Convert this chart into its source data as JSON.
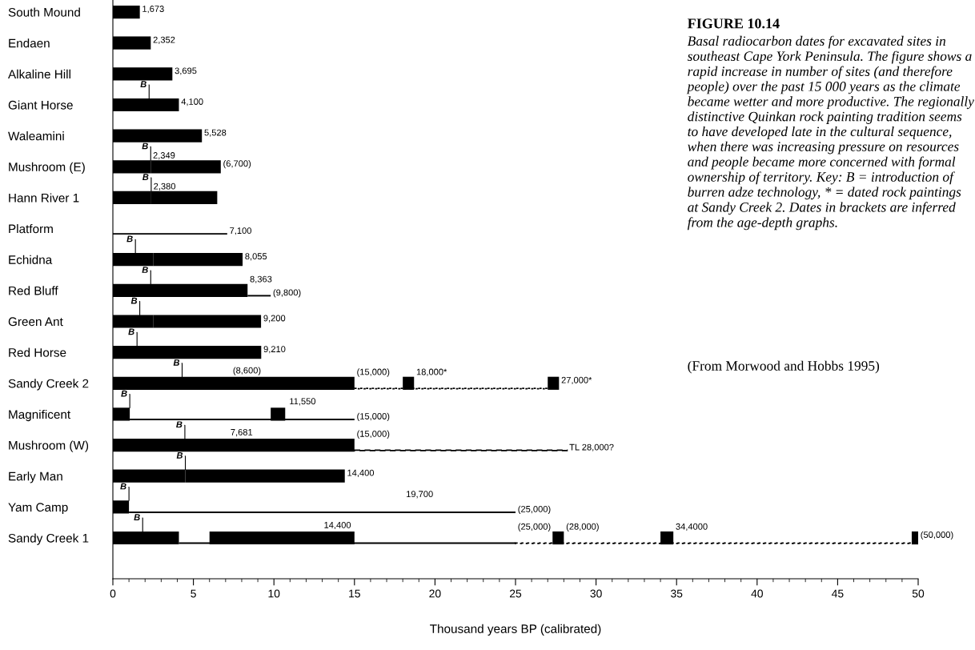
{
  "chart_data": {
    "type": "bar",
    "orientation": "horizontal",
    "title": "FIGURE 10.14",
    "xlabel": "Thousand years BP (calibrated)",
    "categories": [
      "South Mound",
      "Endaen",
      "Alkaline Hill",
      "Giant Horse",
      "Waleamini",
      "Mushroom (E)",
      "Hann River 1",
      "Platform",
      "Echidna",
      "Red Bluff",
      "Green Ant",
      "Red Horse",
      "Sandy Creek 2",
      "Magnificent",
      "Mushroom (W)",
      "Early Man",
      "Yam Camp",
      "Sandy Creek 1"
    ],
    "xlim": [
      0,
      50
    ],
    "xticks": [
      0,
      5,
      10,
      15,
      20,
      25,
      30,
      35,
      40,
      45,
      50
    ],
    "series": [
      {
        "color": "#000000",
        "base": [
          0,
          0,
          0,
          0,
          0,
          0,
          0,
          null,
          0,
          0,
          0,
          0,
          0,
          0,
          0,
          0,
          0,
          0
        ],
        "values": [
          1.673,
          2.352,
          3.695,
          4.1,
          5.528,
          2.349,
          2.38,
          null,
          2.5,
          8.363,
          2.5,
          9.21,
          15,
          1.05,
          15,
          4.5,
          1.0,
          4.1
        ]
      },
      {
        "color": "#000000",
        "base": [
          null,
          null,
          null,
          null,
          null,
          2.349,
          2.38,
          null,
          2.5,
          null,
          2.5,
          null,
          18.0,
          9.8,
          null,
          4.5,
          null,
          6.0
        ],
        "values": [
          null,
          null,
          null,
          null,
          null,
          4.351,
          4.1,
          null,
          5.555,
          null,
          6.7,
          null,
          0.7,
          0.9,
          null,
          9.9,
          null,
          9.0
        ]
      },
      {
        "color": "#000000",
        "base": [
          null,
          null,
          null,
          null,
          null,
          null,
          null,
          null,
          null,
          null,
          null,
          null,
          27.0,
          null,
          null,
          null,
          null,
          27.3
        ],
        "values": [
          null,
          null,
          null,
          null,
          null,
          null,
          null,
          null,
          null,
          null,
          null,
          null,
          0.7,
          null,
          null,
          null,
          null,
          0.7
        ]
      },
      {
        "color": "#000000",
        "base": [
          null,
          null,
          null,
          null,
          null,
          null,
          null,
          null,
          null,
          null,
          null,
          null,
          null,
          null,
          null,
          null,
          null,
          34.0
        ],
        "values": [
          null,
          null,
          null,
          null,
          null,
          null,
          null,
          null,
          null,
          null,
          null,
          null,
          null,
          null,
          null,
          null,
          null,
          0.8
        ]
      },
      {
        "color": "#000000",
        "base": [
          null,
          null,
          null,
          null,
          null,
          null,
          null,
          null,
          null,
          null,
          null,
          null,
          null,
          null,
          null,
          null,
          null,
          49.6
        ],
        "values": [
          null,
          null,
          null,
          null,
          null,
          null,
          null,
          null,
          null,
          null,
          null,
          null,
          null,
          null,
          null,
          null,
          null,
          0.4
        ]
      },
      {
        "line_style": "solid",
        "color": "#000000",
        "base": [
          null,
          null,
          null,
          null,
          null,
          null,
          null,
          0,
          null,
          8.363,
          null,
          null,
          null,
          1.05,
          null,
          null,
          1.0,
          4.1
        ],
        "values": [
          null,
          null,
          null,
          null,
          null,
          null,
          null,
          7.1,
          null,
          1.437,
          null,
          null,
          null,
          13.95,
          null,
          null,
          24,
          20.9
        ]
      },
      {
        "line_style": "dotted",
        "color": "#000000",
        "base": [
          null,
          null,
          null,
          null,
          null,
          null,
          null,
          null,
          null,
          null,
          null,
          null,
          15,
          null,
          null,
          null,
          null,
          25
        ],
        "values": [
          null,
          null,
          null,
          null,
          null,
          null,
          null,
          null,
          null,
          null,
          null,
          null,
          12.0,
          null,
          null,
          null,
          null,
          24.6
        ]
      },
      {
        "line_style": "dashed",
        "color": "#000000",
        "base": [
          null,
          null,
          null,
          null,
          null,
          null,
          null,
          null,
          null,
          null,
          null,
          null,
          null,
          null,
          15,
          null,
          null,
          null
        ],
        "values": [
          null,
          null,
          null,
          null,
          null,
          null,
          null,
          null,
          null,
          null,
          null,
          null,
          null,
          null,
          13.2,
          null,
          null,
          null
        ]
      }
    ],
    "annotations": [
      "Basal radiocarbon dates for excavated sites in southeast Cape York Peninsula. The figure shows a rapid increase in number of sites (and therefore people) over the past 15 000 years as the climate became wetter and more productive. The regionally distinctive Quinkan rock painting tradition seems to have developed late in the cultural sequence, when there was increasing pressure on resources and people became more concerned with formal ownership of territory. Key: B = introduction of burren adze technology, * = dated rock paintings at Sandy Creek 2. Dates in brackets are inferred from the age-depth graphs.",
      "(From Morwood and Hobbs 1995)",
      "(8,600)",
      "7,681",
      "11,550",
      "19,700",
      "14,400",
      "B",
      "B",
      "B",
      "B",
      "B",
      "B",
      "B",
      "B",
      "B",
      "B",
      "B",
      "B",
      "B",
      "7,100",
      {
        "text": "1,673",
        "x": 1.673,
        "y": "South Mound"
      },
      {
        "text": "2,352",
        "x": 2.352,
        "y": "Endaen"
      },
      {
        "text": "3,695",
        "x": 3.695,
        "y": "Alkaline Hill"
      },
      {
        "text": "4,100",
        "x": 4.1,
        "y": "Giant Horse"
      },
      {
        "text": "5,528",
        "x": 5.528,
        "y": "Waleamini"
      },
      {
        "text": "2,349",
        "x": 2.349,
        "y": "Mushroom (E)"
      },
      {
        "text": "(6,700)",
        "x": 6.7,
        "y": "Mushroom (E)"
      },
      {
        "text": "2,380",
        "x": 2.38,
        "y": "Hann River 1"
      },
      {
        "text": "8,055",
        "x": 8.055,
        "y": "Echidna"
      },
      {
        "text": "8,363",
        "x": 8.363,
        "y": "Red Bluff"
      },
      {
        "text": "(9,800)",
        "x": 9.8,
        "y": "Red Bluff"
      },
      {
        "text": "9,200",
        "x": 9.2,
        "y": "Green Ant"
      },
      {
        "text": "9,210",
        "x": 9.21,
        "y": "Red Horse"
      },
      {
        "text": "(15,000)",
        "x": 15,
        "y": "Sandy Creek 2"
      },
      {
        "text": "18,000*",
        "x": 18.7,
        "y": "Sandy Creek 2"
      },
      {
        "text": "27,000*",
        "x": 27.7,
        "y": "Sandy Creek 2"
      },
      {
        "text": "(15,000)",
        "x": 15,
        "y": "Magnificent"
      },
      {
        "text": "(15,000)",
        "x": 15,
        "y": "Mushroom (W)"
      },
      {
        "text": "TL 28,000?",
        "x": 28.2,
        "y": "Mushroom (W)"
      },
      {
        "text": "14,400",
        "x": 14.4,
        "y": "Early Man"
      },
      {
        "text": "(25,000)",
        "x": 25,
        "y": "Yam Camp"
      },
      {
        "text": "(25,000)",
        "x": 25,
        "y": "Sandy Creek 1"
      },
      {
        "text": "(28,000)",
        "x": 28.0,
        "y": "Sandy Creek 1"
      },
      {
        "text": "34,4000",
        "x": 34.8,
        "y": "Sandy Creek 1"
      },
      {
        "text": "(50,000)",
        "x": 50,
        "y": "Sandy Creek 1"
      }
    ]
  }
}
